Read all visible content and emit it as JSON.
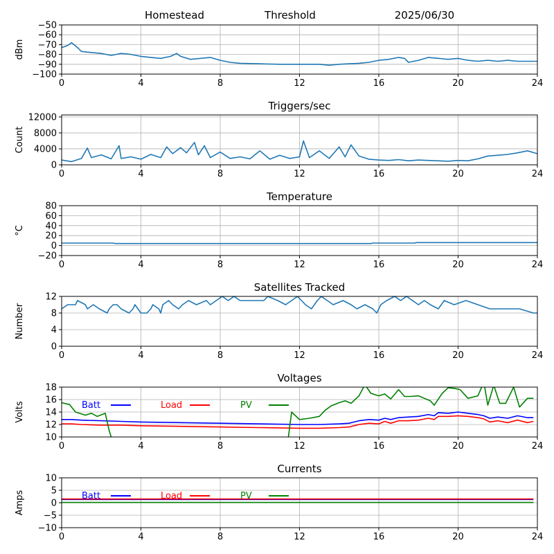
{
  "header": {
    "station": "Homestead",
    "mode": "Threshold",
    "date": "2025/06/30"
  },
  "colors": {
    "series_default": "#1f77b4",
    "batt": "#0000ff",
    "load": "#ff0000",
    "pv": "#008000",
    "grid": "#b0b0b0"
  },
  "chart_data": [
    {
      "type": "line",
      "title": "",
      "ylabel": "dBm",
      "xlim": [
        0,
        24
      ],
      "ylim": [
        -100,
        -50
      ],
      "xticks": [
        0,
        4,
        8,
        12,
        16,
        20,
        24
      ],
      "yticks": [
        -100,
        -90,
        -80,
        -70,
        -60,
        -50
      ],
      "grid": true,
      "series": [
        {
          "color": "#1f77b4",
          "x": [
            0,
            0.3,
            0.5,
            0.8,
            1,
            1.5,
            2,
            2.5,
            3,
            3.5,
            4,
            4.5,
            5,
            5.5,
            5.8,
            6,
            6.5,
            7,
            7.5,
            8,
            8.5,
            9,
            10,
            11,
            12,
            13,
            13.5,
            14,
            15,
            15.5,
            16,
            16.5,
            17,
            17.3,
            17.5,
            18,
            18.5,
            19,
            19.5,
            20,
            20.5,
            21,
            21.5,
            22,
            22.5,
            23,
            23.5,
            24
          ],
          "y": [
            -73,
            -71,
            -68,
            -73,
            -77,
            -78,
            -79,
            -81,
            -79,
            -80,
            -82,
            -83,
            -84,
            -82,
            -79,
            -82,
            -85,
            -84,
            -83,
            -86,
            -88,
            -89,
            -89.5,
            -90,
            -90,
            -90,
            -91,
            -90,
            -89,
            -88,
            -86,
            -85,
            -83,
            -84,
            -88,
            -86,
            -83,
            -84,
            -85,
            -84,
            -86,
            -87,
            -86,
            -87,
            -86,
            -87,
            -87,
            -87
          ]
        }
      ]
    },
    {
      "type": "line",
      "title": "Triggers/sec",
      "ylabel": "Count",
      "xlim": [
        0,
        24
      ],
      "ylim": [
        0,
        12500
      ],
      "xticks": [
        0,
        4,
        8,
        12,
        16,
        20,
        24
      ],
      "yticks": [
        0,
        4000,
        8000,
        12000
      ],
      "grid": true,
      "series": [
        {
          "color": "#1f77b4",
          "x": [
            0,
            0.5,
            1,
            1.3,
            1.5,
            2,
            2.5,
            2.9,
            3,
            3.5,
            4,
            4.5,
            5,
            5.3,
            5.6,
            6,
            6.3,
            6.7,
            6.9,
            7.2,
            7.5,
            8,
            8.5,
            9,
            9.5,
            10,
            10.5,
            11,
            11.5,
            12,
            12.2,
            12.5,
            13,
            13.5,
            14,
            14.3,
            14.6,
            15,
            15.5,
            16,
            16.5,
            17,
            17.5,
            18,
            18.5,
            19,
            19.5,
            20,
            20.5,
            21,
            21.5,
            22,
            22.5,
            23,
            23.5,
            24
          ],
          "y": [
            1200,
            800,
            1600,
            4200,
            1800,
            2500,
            1500,
            4800,
            1600,
            2000,
            1400,
            2600,
            1800,
            4500,
            2800,
            4300,
            3000,
            5600,
            2500,
            4800,
            1800,
            3200,
            1600,
            2000,
            1500,
            3500,
            1400,
            2400,
            1600,
            2000,
            6000,
            1800,
            3500,
            1600,
            4500,
            2000,
            5000,
            2200,
            1400,
            1200,
            1100,
            1300,
            1000,
            1200,
            1100,
            1000,
            900,
            1100,
            1000,
            1500,
            2200,
            2400,
            2600,
            3000,
            3500,
            2800
          ]
        }
      ]
    },
    {
      "type": "line",
      "title": "Temperature",
      "ylabel": "°C",
      "xlim": [
        0,
        24
      ],
      "ylim": [
        -20,
        80
      ],
      "xticks": [
        0,
        4,
        8,
        12,
        16,
        20,
        24
      ],
      "yticks": [
        -20,
        0,
        20,
        40,
        60,
        80
      ],
      "grid": true,
      "series": [
        {
          "color": "#1f77b4",
          "x": [
            0,
            2.6,
            2.7,
            15.6,
            15.7,
            17.8,
            17.9,
            24
          ],
          "y": [
            5,
            5,
            4,
            4,
            5,
            5,
            6,
            6
          ]
        }
      ]
    },
    {
      "type": "line",
      "title": "Satellites Tracked",
      "ylabel": "Number",
      "xlim": [
        0,
        24
      ],
      "ylim": [
        0,
        12
      ],
      "xticks": [
        0,
        4,
        8,
        12,
        16,
        20,
        24
      ],
      "yticks": [
        0,
        4,
        8,
        12
      ],
      "grid": true,
      "series": [
        {
          "color": "#1f77b4",
          "x": [
            0,
            0.3,
            0.7,
            0.8,
            1.2,
            1.3,
            1.6,
            1.9,
            2.3,
            2.4,
            2.6,
            2.8,
            3.0,
            3.4,
            3.6,
            3.7,
            4.0,
            4.3,
            4.5,
            4.6,
            4.9,
            5.0,
            5.1,
            5.4,
            5.6,
            5.9,
            6.1,
            6.4,
            6.8,
            7.3,
            7.5,
            7.8,
            8.1,
            8.4,
            8.7,
            9.0,
            9.3,
            9.9,
            10.2,
            10.4,
            10.9,
            11.3,
            11.6,
            11.9,
            12.3,
            12.6,
            12.9,
            13.1,
            13.4,
            13.7,
            14.2,
            14.6,
            14.9,
            15.3,
            15.7,
            15.9,
            16.1,
            16.4,
            16.8,
            17.1,
            17.4,
            17.7,
            18.0,
            18.3,
            18.6,
            19.0,
            19.3,
            19.8,
            20.4,
            21.0,
            21.6,
            22.3,
            23.1,
            23.8,
            24
          ],
          "y": [
            9,
            10,
            10,
            11,
            10,
            9,
            10,
            9,
            8,
            9,
            10,
            10,
            9,
            8,
            9,
            10,
            8,
            8,
            9,
            10,
            9,
            8,
            10,
            11,
            10,
            9,
            10,
            11,
            10,
            11,
            10,
            11,
            12,
            11,
            12,
            11,
            11,
            11,
            11,
            12,
            11,
            10,
            11,
            12,
            10,
            9,
            11,
            12,
            11,
            10,
            11,
            10,
            9,
            10,
            9,
            8,
            10,
            11,
            12,
            11,
            12,
            11,
            10,
            11,
            10,
            9,
            11,
            10,
            11,
            10,
            9,
            9,
            9,
            8,
            8
          ]
        }
      ]
    },
    {
      "type": "line",
      "title": "Voltages",
      "ylabel": "Volts",
      "xlim": [
        0,
        24
      ],
      "ylim": [
        10,
        18
      ],
      "xticks": [
        0,
        4,
        8,
        12,
        16,
        20,
        24
      ],
      "yticks": [
        10,
        12,
        14,
        16,
        18
      ],
      "grid": true,
      "legend": "top",
      "series": [
        {
          "name": "Batt",
          "color": "#0000ff",
          "x": [
            0,
            0.5,
            1,
            2,
            3,
            4,
            6,
            8,
            10,
            12,
            13,
            14,
            14.5,
            15,
            15.5,
            16,
            16.3,
            16.6,
            17,
            17.5,
            18,
            18.5,
            18.8,
            19,
            19.5,
            20,
            20.5,
            21,
            21.3,
            21.6,
            22,
            22.5,
            23,
            23.5,
            23.8
          ],
          "y": [
            12.8,
            12.8,
            12.7,
            12.6,
            12.5,
            12.4,
            12.3,
            12.2,
            12.1,
            12.0,
            12.0,
            12.1,
            12.2,
            12.6,
            12.8,
            12.7,
            13.0,
            12.8,
            13.1,
            13.2,
            13.3,
            13.6,
            13.4,
            13.9,
            13.8,
            14.0,
            13.8,
            13.6,
            13.4,
            13.0,
            13.2,
            13.0,
            13.4,
            13.1,
            13.1
          ]
        },
        {
          "name": "Load",
          "color": "#ff0000",
          "x": [
            0,
            0.5,
            1,
            2,
            3,
            4,
            6,
            8,
            10,
            12,
            13,
            14,
            14.5,
            15,
            15.5,
            16,
            16.3,
            16.6,
            17,
            17.5,
            18,
            18.5,
            18.8,
            19,
            19.5,
            20,
            20.5,
            21,
            21.3,
            21.6,
            22,
            22.5,
            23,
            23.5,
            23.8
          ],
          "y": [
            12.1,
            12.1,
            12.0,
            11.9,
            11.9,
            11.8,
            11.7,
            11.6,
            11.5,
            11.4,
            11.4,
            11.5,
            11.6,
            12.0,
            12.2,
            12.1,
            12.5,
            12.2,
            12.6,
            12.6,
            12.7,
            13.0,
            12.8,
            13.3,
            13.3,
            13.4,
            13.3,
            13.1,
            12.9,
            12.4,
            12.6,
            12.3,
            12.7,
            12.3,
            12.5
          ]
        },
        {
          "name": "PV",
          "color": "#008000",
          "x": [
            0,
            0.4,
            0.7,
            1.2,
            1.5,
            1.8,
            2.2,
            2.4,
            2.6,
            11.4,
            11.6,
            12,
            12.5,
            13,
            13.3,
            13.6,
            14,
            14.3,
            14.6,
            15,
            15.3,
            15.6,
            16,
            16.3,
            16.6,
            17,
            17.3,
            17.6,
            18,
            18.3,
            18.6,
            18.8,
            19.2,
            19.5,
            19.8,
            20.1,
            20.5,
            21,
            21.3,
            21.5,
            21.8,
            22.1,
            22.4,
            22.8,
            23.1,
            23.5,
            23.8
          ],
          "y": [
            15.5,
            15.2,
            14.0,
            13.5,
            13.8,
            13.3,
            13.8,
            11.0,
            9.0,
            9.0,
            14.0,
            12.8,
            13.0,
            13.3,
            14.3,
            15.0,
            15.5,
            15.8,
            15.4,
            16.6,
            18.4,
            17.0,
            16.6,
            16.9,
            16.1,
            17.6,
            16.5,
            16.5,
            16.6,
            16.2,
            15.8,
            15.1,
            17.0,
            17.9,
            17.8,
            17.6,
            16.2,
            16.6,
            18.8,
            15.1,
            18.3,
            15.4,
            15.4,
            18.0,
            14.8,
            16.2,
            16.2
          ]
        }
      ]
    },
    {
      "type": "line",
      "title": "Currents",
      "ylabel": "Amps",
      "xlim": [
        0,
        24
      ],
      "ylim": [
        -10,
        10
      ],
      "xticks": [
        0,
        4,
        8,
        12,
        16,
        20,
        24
      ],
      "yticks": [
        -10,
        -5,
        0,
        5,
        10
      ],
      "grid": true,
      "legend": "top",
      "series": [
        {
          "name": "Batt",
          "color": "#0000ff",
          "x": [
            0,
            23.8
          ],
          "y": [
            1.3,
            1.3
          ]
        },
        {
          "name": "Load",
          "color": "#ff0000",
          "x": [
            0,
            23.8
          ],
          "y": [
            1.5,
            1.5
          ]
        },
        {
          "name": "PV",
          "color": "#008000",
          "x": [
            0,
            23.8
          ],
          "y": [
            0.1,
            0.1
          ]
        }
      ]
    }
  ]
}
